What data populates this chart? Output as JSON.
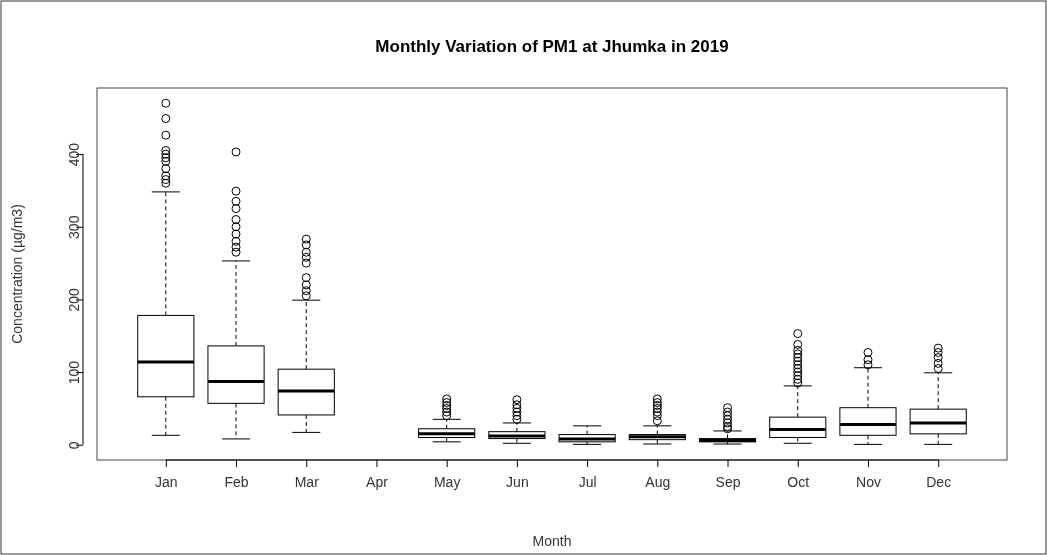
{
  "chart_data": {
    "type": "box",
    "title": "Monthly Variation of PM1 at Jhumka in 2019",
    "xlabel": "Month",
    "ylabel": "Concentration (µg/m3)",
    "categories": [
      "Jan",
      "Feb",
      "Mar",
      "Apr",
      "May",
      "Jun",
      "Jul",
      "Aug",
      "Sep",
      "Oct",
      "Nov",
      "Dec"
    ],
    "ylim": [
      -21,
      491
    ],
    "yticks": [
      0,
      100,
      200,
      300,
      400
    ],
    "boxes": [
      {
        "low": 13,
        "q1": 66,
        "median": 114,
        "q3": 178,
        "high": 348,
        "outliers": [
          470,
          449,
          426,
          405,
          400,
          395,
          390,
          380,
          370,
          365,
          360
        ]
      },
      {
        "low": 8,
        "q1": 57,
        "median": 87,
        "q3": 136,
        "high": 253,
        "outliers": [
          403,
          349,
          335,
          325,
          310,
          300,
          290,
          280,
          272,
          265
        ]
      },
      {
        "low": 17,
        "q1": 41,
        "median": 74,
        "q3": 104,
        "high": 199,
        "outliers": [
          283,
          275,
          265,
          258,
          250,
          230,
          220,
          212,
          205
        ]
      },
      null,
      {
        "low": 4,
        "q1": 10,
        "median": 15,
        "q3": 22,
        "high": 35,
        "outliers": [
          63,
          58,
          54,
          50,
          45,
          40
        ]
      },
      {
        "low": 2,
        "q1": 8.5,
        "median": 12,
        "q3": 18,
        "high": 30,
        "outliers": [
          62,
          55,
          50,
          45,
          40,
          35
        ]
      },
      {
        "low": 0.5,
        "q1": 4,
        "median": 8,
        "q3": 14,
        "high": 26
      },
      {
        "low": 1,
        "q1": 7,
        "median": 11,
        "q3": 14,
        "high": 26,
        "outliers": [
          63,
          58,
          54,
          50,
          45,
          40,
          33
        ]
      },
      {
        "low": 1,
        "q1": 4,
        "median": 6,
        "q3": 8.5,
        "high": 19,
        "outliers": [
          51,
          45,
          40,
          35,
          30,
          25,
          22
        ]
      },
      {
        "low": 2,
        "q1": 10,
        "median": 21,
        "q3": 38,
        "high": 81,
        "outliers": [
          153,
          138,
          130,
          125,
          120,
          115,
          110,
          105,
          100,
          95,
          90,
          85
        ]
      },
      {
        "low": 0.5,
        "q1": 13,
        "median": 28,
        "q3": 51,
        "high": 106,
        "outliers": [
          127,
          117,
          110
        ]
      },
      {
        "low": 0.5,
        "q1": 15,
        "median": 30,
        "q3": 49,
        "high": 99,
        "outliers": [
          133,
          127,
          120,
          112,
          105
        ]
      }
    ]
  }
}
